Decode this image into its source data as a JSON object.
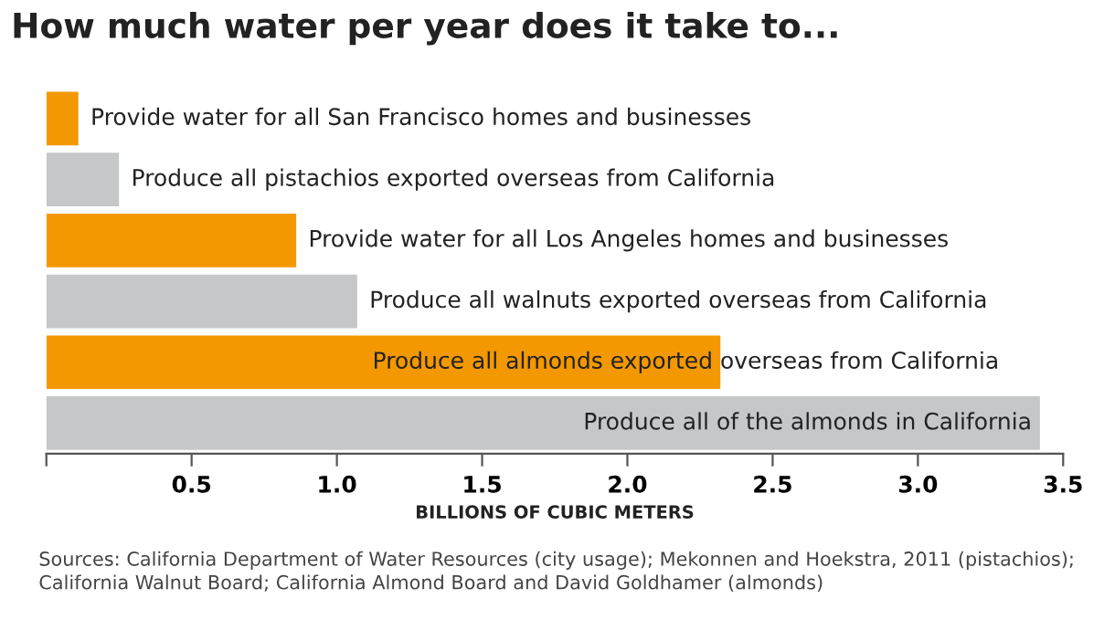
{
  "chart_data": {
    "type": "bar",
    "orientation": "horizontal",
    "title": "How much water per year does it take to...",
    "xlabel": "BILLIONS OF CUBIC METERS",
    "categories": [
      "Provide water for all San Francisco homes and businesses",
      "Produce all pistachios exported overseas from California",
      "Provide water for all Los Angeles homes and businesses",
      "Produce all walnuts exported overseas from California",
      "Produce all almonds exported overseas from California",
      "Produce all of the almonds in California"
    ],
    "values": [
      0.11,
      0.25,
      0.86,
      1.07,
      2.32,
      3.42
    ],
    "colors": [
      "#f39800",
      "#c6c7c8",
      "#f39800",
      "#c6c7c8",
      "#f39800",
      "#c6c7c8"
    ],
    "xlim": [
      0,
      3.5
    ],
    "xticks": [
      {
        "value": 0,
        "label": null
      },
      0.5,
      {
        "value": 1,
        "label": "1.0"
      },
      1.5,
      {
        "value": 2,
        "label": "2.0"
      },
      2.5,
      {
        "value": 3,
        "label": "3.0"
      },
      3.5
    ],
    "tick_labels": "x",
    "grid": false,
    "legend": false,
    "annotations": [
      "Sources: California Department of Water Resources (city usage); Mekonnen and Hoekstra, 2011 (pistachios); California Walnut Board; California Almond Board and David Goldhamer (almonds)"
    ]
  }
}
